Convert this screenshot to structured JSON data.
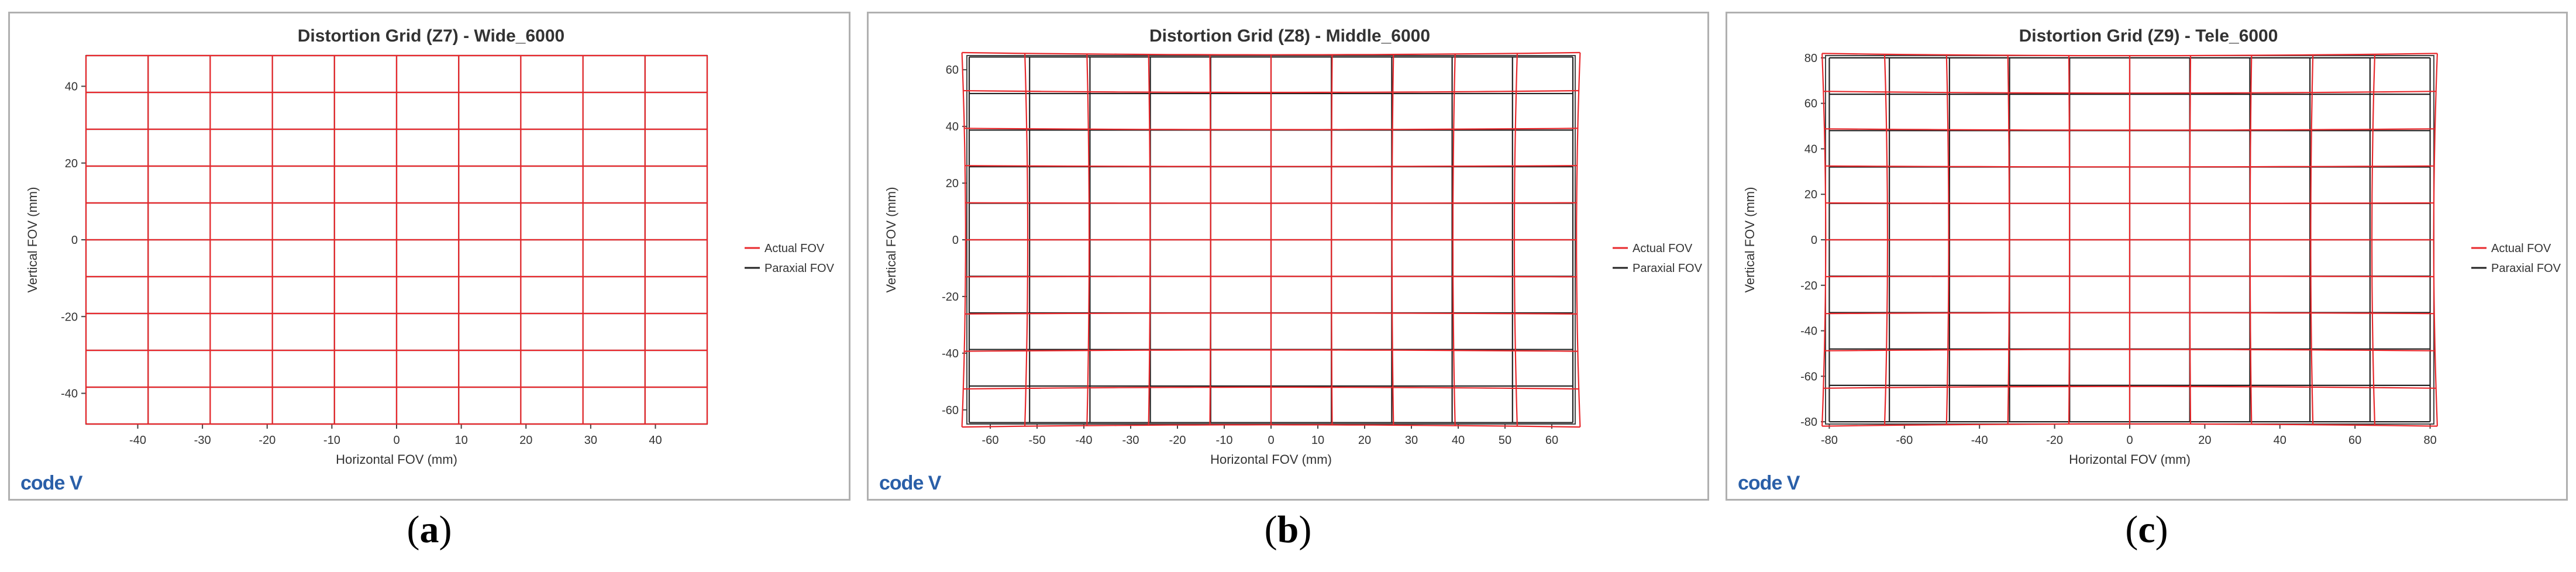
{
  "chart_data": [
    {
      "type": "line",
      "title": "Distortion Grid (Z7) - Wide_6000",
      "xlabel": "Horizontal FOV (mm)",
      "ylabel": "Vertical FOV (mm)",
      "xlim": [
        -48,
        48
      ],
      "ylim": [
        -48,
        48
      ],
      "xticks": [
        -40,
        -30,
        -20,
        -10,
        0,
        10,
        20,
        30,
        40
      ],
      "yticks": [
        -40,
        -20,
        0,
        20,
        40
      ],
      "grid_x": [
        -48,
        -38.4,
        -28.8,
        -19.2,
        -9.6,
        0,
        9.6,
        19.2,
        28.8,
        38.4,
        48
      ],
      "grid_y": [
        -48,
        -38.4,
        -28.8,
        -19.2,
        -9.6,
        0,
        9.6,
        19.2,
        28.8,
        38.4,
        48
      ],
      "distortion_percent": 0,
      "series": [
        {
          "name": "Actual FOV",
          "color": "#e8282c"
        },
        {
          "name": "Paraxial FOV",
          "color": "#222222"
        }
      ],
      "legend": "right",
      "caption": "a"
    },
    {
      "type": "line",
      "title": "Distortion Grid (Z8) - Middle_6000",
      "xlabel": "Horizontal FOV (mm)",
      "ylabel": "Vertical FOV (mm)",
      "xlim": [
        -65,
        65
      ],
      "ylim": [
        -65,
        65
      ],
      "xticks": [
        -60,
        -50,
        -40,
        -30,
        -20,
        -10,
        0,
        10,
        20,
        30,
        40,
        50,
        60
      ],
      "yticks": [
        -60,
        -40,
        -20,
        0,
        20,
        40,
        60
      ],
      "grid_x": [
        -64.5,
        -51.6,
        -38.7,
        -25.8,
        -12.9,
        0,
        12.9,
        25.8,
        38.7,
        51.6,
        64.5
      ],
      "grid_y": [
        -64.5,
        -51.6,
        -38.7,
        -25.8,
        -12.9,
        0,
        12.9,
        25.8,
        38.7,
        51.6,
        64.5
      ],
      "distortion_percent": 1.2,
      "series": [
        {
          "name": "Actual FOV",
          "color": "#e8282c"
        },
        {
          "name": "Paraxial FOV",
          "color": "#222222"
        }
      ],
      "legend": "right",
      "caption": "b"
    },
    {
      "type": "line",
      "title": "Distortion Grid (Z9) - Tele_6000",
      "xlabel": "Horizontal FOV (mm)",
      "ylabel": "Vertical FOV (mm)",
      "xlim": [
        -81,
        81
      ],
      "ylim": [
        -81,
        81
      ],
      "xticks": [
        -80,
        -60,
        -40,
        -20,
        0,
        20,
        40,
        60,
        80
      ],
      "yticks": [
        -80,
        -60,
        -40,
        -20,
        0,
        20,
        40,
        60,
        80
      ],
      "grid_x": [
        -80,
        -64,
        -48,
        -32,
        -16,
        0,
        16,
        32,
        48,
        64,
        80
      ],
      "grid_y": [
        -80,
        -64,
        -48,
        -32,
        -16,
        0,
        16,
        32,
        48,
        64,
        80
      ],
      "distortion_percent": 1.2,
      "series": [
        {
          "name": "Actual FOV",
          "color": "#e8282c"
        },
        {
          "name": "Paraxial FOV",
          "color": "#222222"
        }
      ],
      "legend": "right",
      "caption": "c"
    }
  ],
  "logo_text": "code V"
}
